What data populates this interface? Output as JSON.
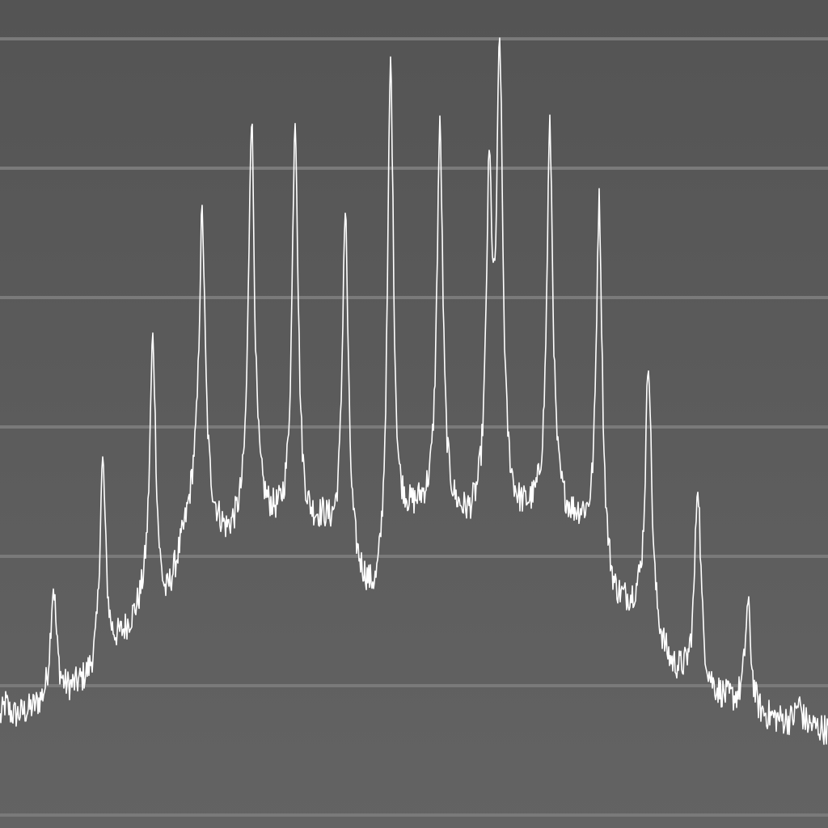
{
  "chart_data": {
    "type": "line",
    "title": "",
    "xlabel": "",
    "ylabel": "",
    "grid": true,
    "legend": "none",
    "xlim": [
      0,
      1024
    ],
    "ylim": [
      -0.1,
      6.3
    ],
    "y_gridlines": [
      0,
      1,
      2,
      3,
      4,
      5,
      6
    ],
    "colors": {
      "line": "#ffffff",
      "grid": "#7a7a7a",
      "background_top": "#545454",
      "background_bottom": "#636363"
    },
    "series": [
      {
        "baseline_envelope": {
          "x": [
            0,
            60,
            120,
            180,
            205,
            240,
            280,
            320,
            345,
            375,
            400,
            440,
            465,
            500,
            520,
            560,
            580,
            620,
            640,
            680,
            720,
            760,
            790,
            830,
            870,
            940,
            1024
          ],
          "y": [
            0.7,
            0.85,
            1.05,
            1.6,
            1.55,
            2.4,
            2.1,
            2.25,
            2.2,
            2.15,
            2.2,
            1.8,
            1.55,
            2.2,
            2.3,
            2.25,
            2.2,
            2.3,
            2.25,
            2.3,
            2.2,
            1.6,
            1.55,
            1.1,
            0.95,
            0.75,
            0.65
          ]
        },
        "peaks": {
          "x": [
            7,
            66,
            127,
            189,
            250,
            311,
            365,
            427,
            483,
            544,
            605,
            618,
            680,
            741,
            802,
            863,
            925,
            988
          ],
          "y": [
            0.85,
            1.75,
            2.7,
            3.65,
            4.6,
            5.35,
            5.35,
            4.6,
            5.75,
            5.25,
            4.7,
            5.7,
            5.25,
            4.7,
            3.5,
            2.55,
            1.6,
            0.85
          ]
        },
        "noise_amplitude": 0.12
      }
    ]
  }
}
